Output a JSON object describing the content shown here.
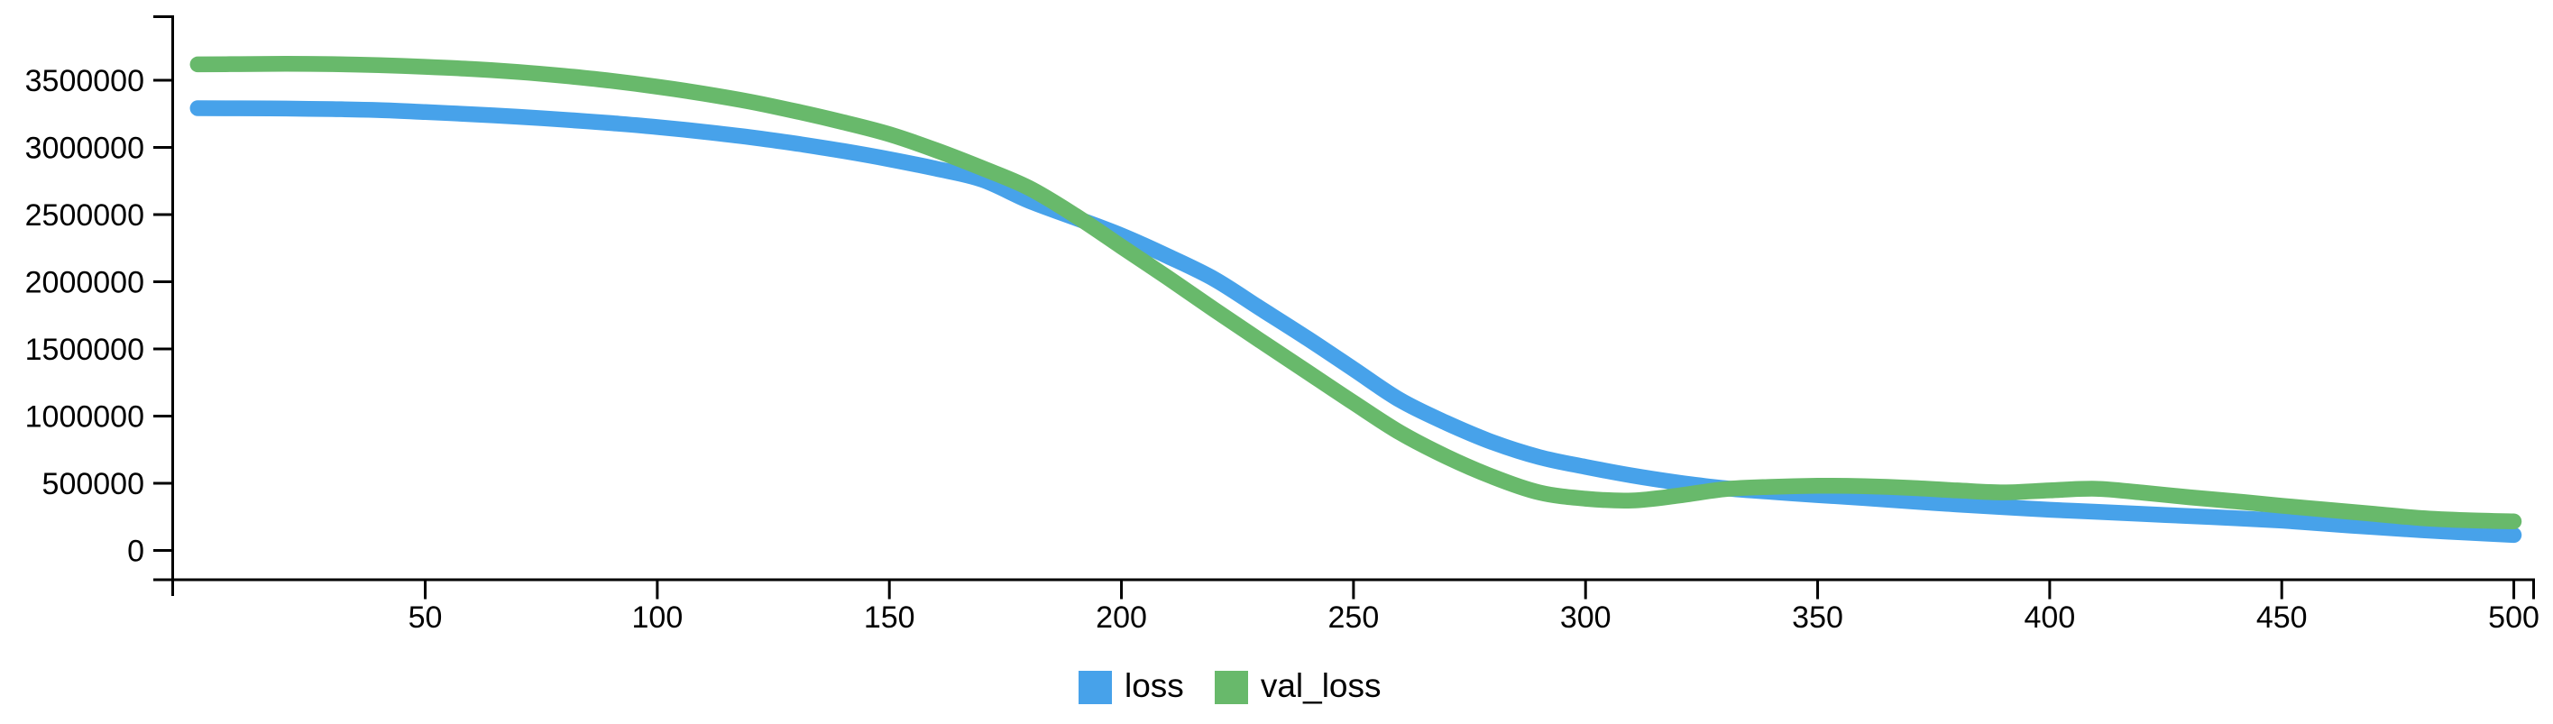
{
  "chart_data": {
    "type": "line",
    "title": "",
    "xlabel": "",
    "ylabel": "",
    "grid": false,
    "legend_position": "bottom-center",
    "axis_color": "#000000",
    "x_axis": {
      "ticks": [
        50,
        100,
        150,
        200,
        250,
        300,
        350,
        400,
        450,
        500
      ],
      "tick_labels": [
        "50",
        "100",
        "150",
        "200",
        "250",
        "300",
        "350",
        "400",
        "450",
        "500"
      ],
      "range": [
        0,
        505
      ]
    },
    "y_axis": {
      "ticks": [
        0,
        500000,
        1000000,
        1500000,
        2000000,
        2500000,
        3000000,
        3500000
      ],
      "tick_labels": [
        "0",
        "500000",
        "1000000",
        "1500000",
        "2000000",
        "2500000",
        "3000000",
        "3500000"
      ],
      "range": [
        -210000,
        3980000
      ]
    },
    "x": [
      1,
      10,
      20,
      30,
      40,
      50,
      60,
      70,
      80,
      90,
      100,
      110,
      120,
      130,
      140,
      150,
      160,
      170,
      180,
      190,
      200,
      210,
      220,
      230,
      240,
      250,
      260,
      270,
      280,
      290,
      300,
      310,
      320,
      330,
      340,
      350,
      360,
      370,
      380,
      390,
      400,
      410,
      420,
      430,
      440,
      450,
      460,
      470,
      480,
      490,
      500
    ],
    "series": [
      {
        "name": "loss",
        "color": "#47a2ea",
        "values": [
          3292000,
          3291000,
          3289000,
          3285000,
          3278000,
          3263000,
          3247000,
          3228000,
          3206000,
          3181000,
          3152000,
          3116000,
          3076000,
          3028000,
          2974000,
          2912000,
          2842000,
          2760000,
          2604000,
          2476000,
          2345000,
          2190000,
          2020000,
          1800000,
          1580000,
          1350000,
          1120000,
          950000,
          805000,
          695000,
          622000,
          558000,
          505000,
          463000,
          436000,
          412000,
          390000,
          366000,
          342000,
          322000,
          303000,
          288000,
          272000,
          256000,
          240000,
          222000,
          197000,
          173000,
          151000,
          132000,
          115000
        ]
      },
      {
        "name": "val_loss",
        "color": "#68b96b",
        "values": [
          3618000,
          3620000,
          3622000,
          3620000,
          3612000,
          3600000,
          3584000,
          3562000,
          3532000,
          3496000,
          3452000,
          3400000,
          3340000,
          3268000,
          3188000,
          3098000,
          2980000,
          2846000,
          2700000,
          2494000,
          2262000,
          2030000,
          1792000,
          1560000,
          1330000,
          1100000,
          878000,
          698000,
          548000,
          432000,
          385000,
          372000,
          408000,
          456000,
          473000,
          481000,
          478000,
          466000,
          447000,
          432000,
          447000,
          459000,
          430000,
          396000,
          366000,
          333000,
          302000,
          272000,
          241000,
          225000,
          216000
        ]
      }
    ]
  },
  "legend": {
    "items": [
      {
        "label": "loss",
        "color": "#47a2ea"
      },
      {
        "label": "val_loss",
        "color": "#68b96b"
      }
    ]
  }
}
